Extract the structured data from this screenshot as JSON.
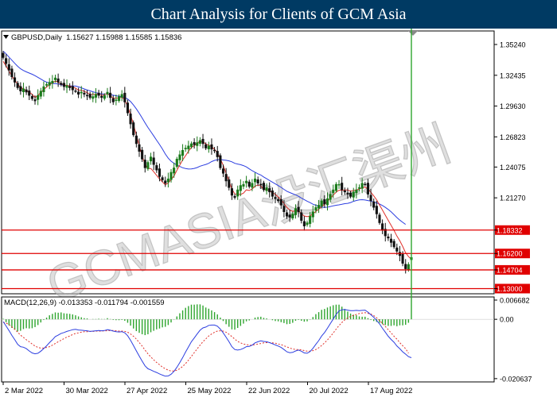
{
  "header": {
    "title": "Chart Analysis for Clients of GCM Asia"
  },
  "watermark": "GCMASIA没汇渠州",
  "colors": {
    "header_bg": "#003a63",
    "bull_candle": "#1a7a1a",
    "bear_candle": "#111111",
    "ma_fast": "#e0302a",
    "ma_slow": "#2c3ee0",
    "level_line": "#e00000",
    "level_label_bg": "#e00000",
    "macd_hist": "#2ea52e",
    "macd_main": "#2c3ee0",
    "macd_signal": "#e0302a"
  },
  "chart_data": [
    {
      "type": "candlestick",
      "title": "GBPUSD,Daily  1.15627 1.15988 1.15585 1.15836",
      "symbol": "GBPUSD",
      "timeframe": "Daily",
      "last_bar": {
        "open": 1.15627,
        "high": 1.15988,
        "low": 1.15585,
        "close": 1.15836
      },
      "y_ticks": [
        "1.35240",
        "1.32435",
        "1.29630",
        "1.26823",
        "1.24075",
        "1.21270",
        "1.18332",
        "1.16200",
        "1.14704",
        "1.13000"
      ],
      "ylim": [
        1.126,
        1.364
      ],
      "x_ticks": [
        "2 Mar 2022",
        "30 Mar 2022",
        "27 Apr 2022",
        "25 May 2022",
        "22 Jun 2022",
        "20 Jul 2022",
        "17 Aug 2022"
      ],
      "levels": [
        {
          "value": 1.18332,
          "label": "1.18332"
        },
        {
          "value": 1.162,
          "label": "1.16200"
        },
        {
          "value": 1.14704,
          "label": "1.14704"
        },
        {
          "value": 1.13,
          "label": "1.13000"
        }
      ],
      "close_series": [
        1.3405,
        1.335,
        1.329,
        1.323,
        1.318,
        1.313,
        1.31,
        1.312,
        1.309,
        1.306,
        1.303,
        1.301,
        1.306,
        1.31,
        1.314,
        1.316,
        1.318,
        1.319,
        1.322,
        1.318,
        1.316,
        1.314,
        1.315,
        1.313,
        1.311,
        1.31,
        1.307,
        1.309,
        1.307,
        1.306,
        1.304,
        1.305,
        1.307,
        1.306,
        1.304,
        1.306,
        1.309,
        1.304,
        1.3,
        1.302,
        1.305,
        1.307,
        1.3,
        1.29,
        1.28,
        1.27,
        1.262,
        1.255,
        1.248,
        1.24,
        1.245,
        1.25,
        1.243,
        1.238,
        1.232,
        1.229,
        1.226,
        1.23,
        1.236,
        1.24,
        1.248,
        1.252,
        1.256,
        1.258,
        1.26,
        1.262,
        1.261,
        1.263,
        1.265,
        1.262,
        1.258,
        1.26,
        1.257,
        1.256,
        1.25,
        1.24,
        1.235,
        1.228,
        1.222,
        1.215,
        1.213,
        1.22,
        1.224,
        1.225,
        1.228,
        1.223,
        1.226,
        1.23,
        1.226,
        1.225,
        1.22,
        1.222,
        1.218,
        1.214,
        1.212,
        1.21,
        1.206,
        1.2,
        1.196,
        1.195,
        1.198,
        1.203,
        1.2,
        1.192,
        1.187,
        1.19,
        1.196,
        1.2,
        1.204,
        1.206,
        1.21,
        1.207,
        1.212,
        1.216,
        1.22,
        1.225,
        1.225,
        1.22,
        1.218,
        1.216,
        1.214,
        1.218,
        1.22,
        1.222,
        1.226,
        1.225,
        1.216,
        1.21,
        1.204,
        1.198,
        1.19,
        1.183,
        1.178,
        1.176,
        1.172,
        1.168,
        1.164,
        1.16,
        1.153,
        1.148,
        1.152,
        1.15836
      ],
      "ma_fast_series": [
        1.337,
        1.3328,
        1.3282,
        1.3238,
        1.3198,
        1.3163,
        1.3133,
        1.312,
        1.3103,
        1.3091,
        1.3071,
        1.3041,
        1.306,
        1.3088,
        1.3114,
        1.3136,
        1.3159,
        1.3174,
        1.3191,
        1.3181,
        1.3167,
        1.3153,
        1.3152,
        1.3147,
        1.3137,
        1.3127,
        1.3107,
        1.3108,
        1.3096,
        1.3086,
        1.3068,
        1.307,
        1.3071,
        1.3073,
        1.3058,
        1.3067,
        1.3076,
        1.3057,
        1.3033,
        1.3036,
        1.3037,
        1.3044,
        1.3019,
        1.2961,
        1.2883,
        1.2797,
        1.2696,
        1.2605,
        1.2509,
        1.2431,
        1.2394,
        1.2394,
        1.2365,
        1.2332,
        1.2299,
        1.2271,
        1.2246,
        1.2262,
        1.2294,
        1.2326,
        1.2378,
        1.2425,
        1.2473,
        1.2511,
        1.2552,
        1.2585,
        1.2603,
        1.2626,
        1.2642,
        1.2639,
        1.2617,
        1.2606,
        1.2593,
        1.2569,
        1.2538,
        1.2483,
        1.2424,
        1.2351,
        1.2282,
        1.2208,
        1.2163,
        1.2161,
        1.2157,
        1.217,
        1.22,
        1.2194,
        1.2208,
        1.2232,
        1.2245,
        1.2235,
        1.2203,
        1.2202,
        1.219,
        1.2174,
        1.2159,
        1.2135,
        1.2109,
        1.2076,
        1.2039,
        1.2015,
        1.2004,
        1.2009,
        1.2011,
        1.1981,
        1.1962,
        1.1955,
        1.1963,
        1.1981,
        1.2003,
        1.2023,
        1.2046,
        1.2069,
        1.2093,
        1.2122,
        1.2152,
        1.2178,
        1.2197,
        1.2195,
        1.2198,
        1.2198,
        1.2187,
        1.2194,
        1.2199,
        1.2206,
        1.2218,
        1.2225,
        1.2206,
        1.2178,
        1.2145,
        1.2109,
        1.2061,
        1.2016,
        1.1968,
        1.1922,
        1.1876,
        1.183,
        1.1779,
        1.1737,
        1.1684,
        1.1627,
        1.1591,
        1.1568
      ],
      "ma_slow_series": [
        1.3464,
        1.3439,
        1.3409,
        1.3381,
        1.3352,
        1.3325,
        1.3303,
        1.3287,
        1.3275,
        1.3264,
        1.3253,
        1.324,
        1.3225,
        1.3209,
        1.3194,
        1.3181,
        1.3174,
        1.3169,
        1.3167,
        1.3165,
        1.3158,
        1.3152,
        1.3149,
        1.3146,
        1.3146,
        1.3145,
        1.3138,
        1.3129,
        1.3119,
        1.3109,
        1.3102,
        1.3093,
        1.3086,
        1.3079,
        1.3074,
        1.3072,
        1.3074,
        1.3067,
        1.3062,
        1.3057,
        1.3053,
        1.305,
        1.3041,
        1.3027,
        1.3004,
        1.2973,
        1.2937,
        1.2898,
        1.2855,
        1.281,
        1.2768,
        1.2729,
        1.2691,
        1.2652,
        1.2613,
        1.2572,
        1.2527,
        1.2488,
        1.2461,
        1.2441,
        1.2426,
        1.2413,
        1.2401,
        1.2394,
        1.2389,
        1.239,
        1.2395,
        1.2403,
        1.2415,
        1.2423,
        1.2431,
        1.2441,
        1.2457,
        1.2468,
        1.2474,
        1.2477,
        1.2472,
        1.2469,
        1.2464,
        1.2455,
        1.2441,
        1.2435,
        1.2429,
        1.242,
        1.2409,
        1.2391,
        1.2374,
        1.236,
        1.2346,
        1.2335,
        1.2317,
        1.2301,
        1.2285,
        1.227,
        1.2254,
        1.2239,
        1.2222,
        1.2204,
        1.2187,
        1.2175,
        1.2164,
        1.2154,
        1.2141,
        1.2125,
        1.2111,
        1.2096,
        1.2083,
        1.2069,
        1.2059,
        1.2051,
        1.2043,
        1.2039,
        1.2042,
        1.2048,
        1.2054,
        1.2059,
        1.2063,
        1.2068,
        1.2074,
        1.2077,
        1.2084,
        1.2095,
        1.2103,
        1.2108,
        1.211,
        1.2107,
        1.2102,
        1.2097,
        1.209,
        1.2081,
        1.207,
        1.2057,
        1.204,
        1.2021,
        1.1999,
        1.1973,
        1.1947,
        1.1924,
        1.1904,
        1.1885
      ]
    },
    {
      "type": "line",
      "title": "MACD(12,26,9) -0.013353 -0.011794 -0.001559",
      "indicator": "MACD(12,26,9)",
      "values_shown": {
        "main": -0.013353,
        "signal": -0.011794,
        "histogram": -0.001559
      },
      "y_ticks": [
        "0.006682",
        "0.00",
        "-0.020637"
      ],
      "ylim": [
        -0.0215,
        0.0075
      ],
      "macd_series": [
        -0.0008,
        -0.0023,
        -0.0039,
        -0.0056,
        -0.0071,
        -0.0087,
        -0.0095,
        -0.0097,
        -0.0102,
        -0.011,
        -0.0117,
        -0.012,
        -0.0118,
        -0.0111,
        -0.0102,
        -0.0092,
        -0.0081,
        -0.0071,
        -0.006,
        -0.0055,
        -0.0049,
        -0.0046,
        -0.0042,
        -0.0039,
        -0.0036,
        -0.0035,
        -0.0037,
        -0.0038,
        -0.0039,
        -0.004,
        -0.0042,
        -0.0041,
        -0.004,
        -0.0039,
        -0.004,
        -0.0039,
        -0.0036,
        -0.0038,
        -0.0041,
        -0.0043,
        -0.0044,
        -0.0043,
        -0.0047,
        -0.0057,
        -0.0073,
        -0.0091,
        -0.011,
        -0.0128,
        -0.0145,
        -0.0162,
        -0.0172,
        -0.0176,
        -0.0181,
        -0.0185,
        -0.019,
        -0.0194,
        -0.0198,
        -0.0197,
        -0.0191,
        -0.0181,
        -0.0167,
        -0.0151,
        -0.0133,
        -0.0114,
        -0.0096,
        -0.0078,
        -0.0065,
        -0.0051,
        -0.0038,
        -0.003,
        -0.0027,
        -0.0021,
        -0.002,
        -0.002,
        -0.0024,
        -0.0034,
        -0.0047,
        -0.0062,
        -0.0078,
        -0.0095,
        -0.0105,
        -0.0107,
        -0.0105,
        -0.0101,
        -0.0095,
        -0.0094,
        -0.009,
        -0.0082,
        -0.0078,
        -0.0075,
        -0.0077,
        -0.0078,
        -0.0081,
        -0.0085,
        -0.0089,
        -0.0093,
        -0.0098,
        -0.0105,
        -0.0113,
        -0.0116,
        -0.0115,
        -0.011,
        -0.0107,
        -0.0111,
        -0.0117,
        -0.0118,
        -0.0112,
        -0.0101,
        -0.0087,
        -0.0074,
        -0.0058,
        -0.0046,
        -0.0031,
        -0.0015,
        0.0001,
        0.0017,
        0.0029,
        0.0033,
        0.0034,
        0.0032,
        0.003,
        0.003,
        0.0031,
        0.003,
        0.0031,
        0.0032,
        0.0025,
        0.0016,
        0.0007,
        -0.0004,
        -0.0016,
        -0.0031,
        -0.0045,
        -0.0059,
        -0.007,
        -0.008,
        -0.0093,
        -0.0102,
        -0.0113,
        -0.0121,
        -0.013,
        -0.013353
      ],
      "signal_series": [
        -0.001,
        -0.0013,
        -0.0018,
        -0.0026,
        -0.0035,
        -0.0045,
        -0.0055,
        -0.0063,
        -0.0071,
        -0.0078,
        -0.0086,
        -0.0093,
        -0.0098,
        -0.01,
        -0.01,
        -0.0098,
        -0.0095,
        -0.009,
        -0.0084,
        -0.0078,
        -0.0073,
        -0.0067,
        -0.0062,
        -0.0058,
        -0.0053,
        -0.0049,
        -0.0047,
        -0.0045,
        -0.0043,
        -0.0043,
        -0.0042,
        -0.0042,
        -0.0041,
        -0.0041,
        -0.0041,
        -0.004,
        -0.004,
        -0.0039,
        -0.0039,
        -0.004,
        -0.0041,
        -0.0041,
        -0.0042,
        -0.0045,
        -0.0051,
        -0.0059,
        -0.0069,
        -0.0081,
        -0.0093,
        -0.0107,
        -0.012,
        -0.0131,
        -0.0141,
        -0.015,
        -0.0158,
        -0.0166,
        -0.0172,
        -0.0177,
        -0.018,
        -0.018,
        -0.0177,
        -0.0172,
        -0.0164,
        -0.0154,
        -0.0142,
        -0.0129,
        -0.0116,
        -0.0103,
        -0.009,
        -0.0078,
        -0.0068,
        -0.0058,
        -0.0051,
        -0.0045,
        -0.0041,
        -0.004,
        -0.0041,
        -0.0045,
        -0.0052,
        -0.006,
        -0.0069,
        -0.0077,
        -0.0082,
        -0.0086,
        -0.0088,
        -0.009,
        -0.009,
        -0.0088,
        -0.0086,
        -0.0084,
        -0.0082,
        -0.0081,
        -0.0081,
        -0.0082,
        -0.0083,
        -0.0086,
        -0.0088,
        -0.0092,
        -0.0096,
        -0.01,
        -0.0103,
        -0.0105,
        -0.0105,
        -0.0106,
        -0.0109,
        -0.0111,
        -0.0111,
        -0.0109,
        -0.0105,
        -0.0099,
        -0.0091,
        -0.0082,
        -0.0072,
        -0.006,
        -0.0048,
        -0.0034,
        -0.0022,
        -0.0011,
        -0.0002,
        0.0005,
        0.001,
        0.0014,
        0.0017,
        0.002,
        0.0022,
        0.0023,
        0.0021,
        0.0018,
        0.0013,
        0.0005,
        -0.0004,
        -0.0014,
        -0.0025,
        -0.0036,
        -0.0047,
        -0.0059,
        -0.0069,
        -0.0081,
        -0.0092,
        -0.0102,
        -0.011794
      ]
    }
  ]
}
